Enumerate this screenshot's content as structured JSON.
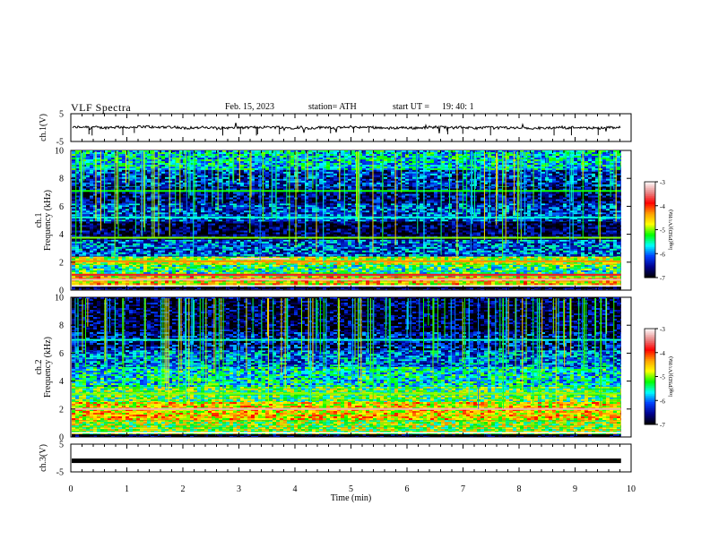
{
  "header": {
    "title": "VLF  Spectra",
    "date": "Feb. 15, 2023",
    "station": "station= ATH",
    "start_label": "start  UT  =",
    "start_value": "19: 40: 1"
  },
  "colors": {
    "colormap": [
      "#ffffff",
      "#e88a8a",
      "#ff0000",
      "#ffa000",
      "#ffff00",
      "#00ff00",
      "#00ffff",
      "#0040ff",
      "#00008b",
      "#000000"
    ],
    "waveform": "#000000",
    "background": "#ffffff"
  },
  "chart_data": [
    {
      "type": "line",
      "name": "ch1-waveform",
      "ylabel": "ch.1(V)",
      "yticks": [
        "5",
        "-5"
      ],
      "ylim": [
        -5,
        5
      ],
      "xlim": [
        0,
        10
      ],
      "trace_level": 0,
      "data_end_min": 9.82
    },
    {
      "type": "heatmap",
      "name": "ch1-spectrogram",
      "ylabel": "ch.1\nFrequency  (kHz)",
      "yticks": [
        "0",
        "2",
        "4",
        "6",
        "8",
        "10"
      ],
      "ylim": [
        0,
        10
      ],
      "xlim": [
        0,
        10
      ],
      "data_end_min": 9.82,
      "colorbar": {
        "label": "log(PSD)(V²/Hz)",
        "range": [
          -7,
          -3
        ],
        "ticks": [
          "-3",
          "-4",
          "-5",
          "-6",
          "-7"
        ]
      },
      "bands_khz": [
        {
          "lo": 0,
          "hi": 0.3,
          "level": -7
        },
        {
          "lo": 0.3,
          "hi": 1.0,
          "level": -4.6
        },
        {
          "lo": 1.0,
          "hi": 1.8,
          "level": -5.4
        },
        {
          "lo": 1.8,
          "hi": 2.4,
          "level": -4.9
        },
        {
          "lo": 2.4,
          "hi": 3.6,
          "level": -6.1
        },
        {
          "lo": 3.6,
          "hi": 4.9,
          "level": -6.8
        },
        {
          "lo": 4.9,
          "hi": 6.2,
          "level": -6.2
        },
        {
          "lo": 6.2,
          "hi": 7.4,
          "level": -6.6
        },
        {
          "lo": 7.4,
          "hi": 8.6,
          "level": -6.3
        },
        {
          "lo": 8.6,
          "hi": 10,
          "level": -5.7
        }
      ],
      "lines_khz": [
        {
          "f": 0.75,
          "level": -3.3
        },
        {
          "f": 1.1,
          "level": -3.8
        },
        {
          "f": 2.05,
          "level": -4.3
        },
        {
          "f": 2.25,
          "level": -3.2,
          "t0": 2.85,
          "t1": 3.9
        },
        {
          "f": 3.75,
          "level": -5.0
        },
        {
          "f": 5.2,
          "level": -5.6
        },
        {
          "f": 7.1,
          "level": -5.2
        }
      ]
    },
    {
      "type": "heatmap",
      "name": "ch2-spectrogram",
      "ylabel": "ch.2\nFrequency  (kHz)",
      "yticks": [
        "0",
        "2",
        "4",
        "6",
        "8",
        "10"
      ],
      "ylim": [
        0,
        10
      ],
      "xlim": [
        0,
        10
      ],
      "data_end_min": 9.82,
      "colorbar": {
        "label": "log(PSD)(V²/Hz)",
        "range": [
          -7,
          -3
        ],
        "ticks": [
          "-3",
          "-4",
          "-5",
          "-6",
          "-7"
        ]
      },
      "bands_khz": [
        {
          "lo": 0,
          "hi": 0.2,
          "level": -7
        },
        {
          "lo": 0.2,
          "hi": 1.2,
          "level": -5.0
        },
        {
          "lo": 1.2,
          "hi": 2.5,
          "level": -4.6
        },
        {
          "lo": 2.5,
          "hi": 3.6,
          "level": -5.2
        },
        {
          "lo": 3.6,
          "hi": 5.0,
          "level": -5.6
        },
        {
          "lo": 5.0,
          "hi": 6.2,
          "level": -6.0
        },
        {
          "lo": 6.2,
          "hi": 7.5,
          "level": -6.5
        },
        {
          "lo": 7.5,
          "hi": 10,
          "level": -6.8
        }
      ],
      "lines_khz": [
        {
          "f": 2.0,
          "level": -3.3
        },
        {
          "f": 3.1,
          "level": -5.0
        },
        {
          "f": 6.95,
          "level": -5.6
        }
      ]
    },
    {
      "type": "line",
      "name": "ch3-waveform",
      "ylabel": "ch.3(V)",
      "yticks": [
        "5",
        "-5"
      ],
      "ylim": [
        -5,
        5
      ],
      "xlim": [
        0,
        10
      ],
      "trace_level": -1,
      "data_end_min": 9.82,
      "xlabel": "Time  (min)",
      "xticks": [
        "0",
        "1",
        "2",
        "3",
        "4",
        "5",
        "6",
        "7",
        "8",
        "9",
        "10"
      ]
    }
  ]
}
